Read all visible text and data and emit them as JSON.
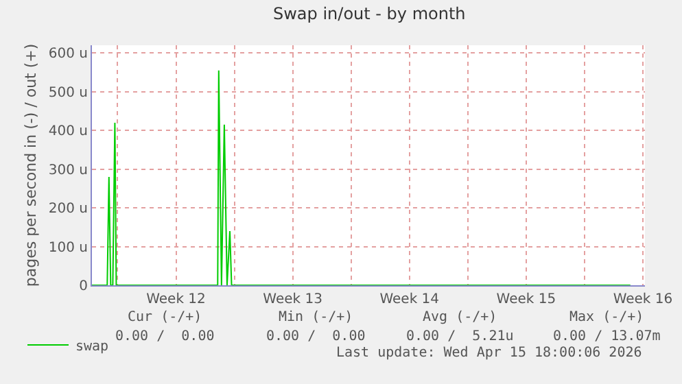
{
  "chart_data": {
    "type": "line",
    "title": "Swap in/out - by month",
    "ylabel": "pages per second in (-) / out (+)",
    "x": [
      "2026-03-14T11:00",
      "2026-03-15T09:00",
      "2026-03-15T11:30",
      "2026-03-15T14:00",
      "2026-03-15T17:00",
      "2026-03-15T20:00",
      "2026-03-15T22:00",
      "2026-03-22T00:00",
      "2026-03-22T01:30",
      "2026-03-22T05:30",
      "2026-03-22T09:30",
      "2026-03-22T13:30",
      "2026-03-22T17:30",
      "2026-03-22T20:00",
      "2026-04-15T18:00"
    ],
    "series": [
      {
        "name": "swap",
        "color": "#00cc00",
        "values": [
          0,
          0,
          280,
          0,
          0,
          420,
          0,
          0,
          555,
          0,
          415,
          0,
          140,
          0,
          0
        ]
      }
    ],
    "xlim": [
      "2026-03-14T11:00",
      "2026-04-16T15:00"
    ],
    "xticks": [
      {
        "value": "2026-03-16",
        "label": null
      },
      {
        "value": "2026-03-19T12:00",
        "label": "Week 12"
      },
      {
        "value": "2026-03-23",
        "label": null
      },
      {
        "value": "2026-03-26T12:00",
        "label": "Week 13"
      },
      {
        "value": "2026-03-30",
        "label": null
      },
      {
        "value": "2026-04-02T12:00",
        "label": "Week 14"
      },
      {
        "value": "2026-04-06",
        "label": null
      },
      {
        "value": "2026-04-09T12:00",
        "label": "Week 15"
      },
      {
        "value": "2026-04-13",
        "label": null
      },
      {
        "value": "2026-04-16T12:00",
        "label": "Week 16"
      }
    ],
    "ylim": [
      0,
      620
    ],
    "yticks": [
      {
        "value": 0,
        "label": "0"
      },
      {
        "value": 100,
        "label": "100 u"
      },
      {
        "value": 200,
        "label": "200 u"
      },
      {
        "value": 300,
        "label": "300 u"
      },
      {
        "value": 400,
        "label": "400 u"
      },
      {
        "value": 500,
        "label": "500 u"
      },
      {
        "value": 600,
        "label": "600 u"
      }
    ],
    "grid": true,
    "legend": "bottom left",
    "annotations": [
      "Cur (-/+)",
      "Min (-/+)",
      "Avg (-/+)",
      "Max (-/+)",
      "0.00 /  0.00",
      "0.00 /  0.00",
      "0.00 /  5.21u",
      "0.00 / 13.07m",
      "Last update: Wed Apr 15 18:00:06 2026"
    ]
  }
}
